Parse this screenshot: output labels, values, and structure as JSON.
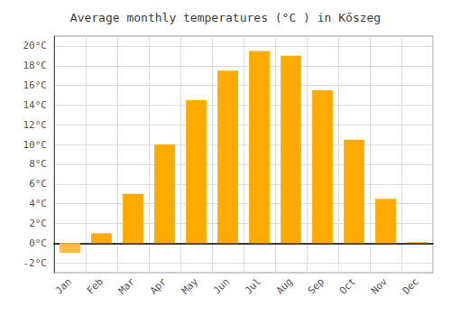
{
  "chart_data": {
    "type": "bar",
    "title": "Average monthly temperatures (°C ) in Kőszeg",
    "categories": [
      "Jan",
      "Feb",
      "Mar",
      "Apr",
      "May",
      "Jun",
      "Jul",
      "Aug",
      "Sep",
      "Oct",
      "Nov",
      "Dec"
    ],
    "values": [
      -1.0,
      1.0,
      5.0,
      10.0,
      14.5,
      17.5,
      19.5,
      19.0,
      15.5,
      10.5,
      4.5,
      0.1
    ],
    "colors": [
      "#FFBB44",
      "#FFAA00",
      "#FFAA00",
      "#FFAA00",
      "#FFAA00",
      "#FFAA00",
      "#FFAA00",
      "#FFAA00",
      "#FFAA00",
      "#FFAA00",
      "#FFAA00",
      "#FFAA00"
    ],
    "ylim": [
      -3,
      21
    ],
    "yticks": [
      {
        "value": -2,
        "label": "-2°C"
      },
      {
        "value": 0,
        "label": "0°C"
      },
      {
        "value": 2,
        "label": "2°C"
      },
      {
        "value": 4,
        "label": "4°C"
      },
      {
        "value": 6,
        "label": "6°C"
      },
      {
        "value": 8,
        "label": "8°C"
      },
      {
        "value": 10,
        "label": "10°C"
      },
      {
        "value": 12,
        "label": "12°C"
      },
      {
        "value": 14,
        "label": "14°C"
      },
      {
        "value": 16,
        "label": "16°C"
      },
      {
        "value": 18,
        "label": "18°C"
      },
      {
        "value": 20,
        "label": "20°C"
      }
    ],
    "grid": true
  }
}
